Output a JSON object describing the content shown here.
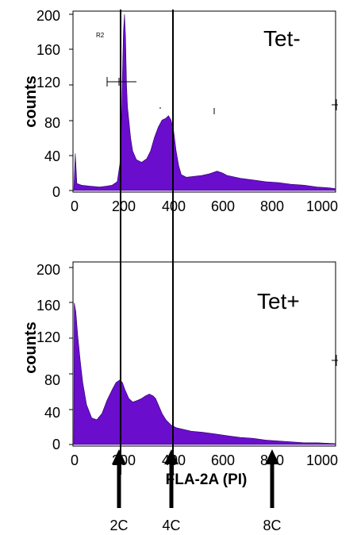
{
  "chart_data": [
    {
      "type": "area",
      "panel_label": "Tet-",
      "ylabel": "counts",
      "xlabel": "",
      "xlim": [
        0,
        1023
      ],
      "ylim": [
        0,
        200
      ],
      "x_ticks": [
        "0",
        "200",
        "400",
        "600",
        "800",
        "1000"
      ],
      "y_ticks": [
        "0",
        "40",
        "80",
        "120",
        "160",
        "200"
      ],
      "gate": {
        "name": "R2",
        "x_range": [
          140,
          265
        ],
        "y": 118
      },
      "series": [
        {
          "color": "#6a0dcc",
          "points": [
            [
              0,
              0
            ],
            [
              6,
              42
            ],
            [
              12,
              8
            ],
            [
              30,
              6
            ],
            [
              60,
              5
            ],
            [
              100,
              4
            ],
            [
              130,
              5
            ],
            [
              150,
              6
            ],
            [
              170,
              10
            ],
            [
              180,
              30
            ],
            [
              186,
              70
            ],
            [
              190,
              130
            ],
            [
              194,
              180
            ],
            [
              198,
              200
            ],
            [
              202,
              175
            ],
            [
              206,
              120
            ],
            [
              210,
              95
            ],
            [
              215,
              80
            ],
            [
              222,
              60
            ],
            [
              230,
              45
            ],
            [
              245,
              35
            ],
            [
              265,
              32
            ],
            [
              285,
              36
            ],
            [
              300,
              45
            ],
            [
              315,
              60
            ],
            [
              330,
              72
            ],
            [
              345,
              80
            ],
            [
              360,
              82
            ],
            [
              370,
              85
            ],
            [
              380,
              80
            ],
            [
              390,
              68
            ],
            [
              400,
              45
            ],
            [
              410,
              28
            ],
            [
              420,
              18
            ],
            [
              440,
              15
            ],
            [
              470,
              16
            ],
            [
              500,
              17
            ],
            [
              530,
              19
            ],
            [
              560,
              22
            ],
            [
              580,
              20
            ],
            [
              600,
              17
            ],
            [
              650,
              14
            ],
            [
              700,
              12
            ],
            [
              750,
              10
            ],
            [
              800,
              9
            ],
            [
              850,
              7
            ],
            [
              900,
              6
            ],
            [
              950,
              4
            ],
            [
              1000,
              3
            ],
            [
              1023,
              2
            ],
            [
              1023,
              0
            ]
          ]
        }
      ]
    },
    {
      "type": "area",
      "panel_label": "Tet+",
      "ylabel": "counts",
      "xlabel": "FLA-2A (PI)",
      "xlim": [
        0,
        1023
      ],
      "ylim": [
        0,
        200
      ],
      "x_ticks": [
        "0",
        "200",
        "400",
        "600",
        "800",
        "1000"
      ],
      "y_ticks": [
        "0",
        "40",
        "80",
        "120",
        "160",
        "200"
      ],
      "series": [
        {
          "color": "#6a0dcc",
          "points": [
            [
              0,
              0
            ],
            [
              2,
              160
            ],
            [
              8,
              150
            ],
            [
              15,
              125
            ],
            [
              25,
              95
            ],
            [
              35,
              70
            ],
            [
              50,
              45
            ],
            [
              70,
              30
            ],
            [
              90,
              28
            ],
            [
              110,
              35
            ],
            [
              130,
              50
            ],
            [
              150,
              62
            ],
            [
              165,
              70
            ],
            [
              180,
              73
            ],
            [
              190,
              70
            ],
            [
              200,
              62
            ],
            [
              215,
              52
            ],
            [
              230,
              48
            ],
            [
              250,
              50
            ],
            [
              265,
              52
            ],
            [
              280,
              55
            ],
            [
              295,
              57
            ],
            [
              310,
              55
            ],
            [
              320,
              52
            ],
            [
              330,
              45
            ],
            [
              345,
              35
            ],
            [
              360,
              28
            ],
            [
              380,
              22
            ],
            [
              400,
              19
            ],
            [
              430,
              17
            ],
            [
              460,
              15
            ],
            [
              500,
              14
            ],
            [
              550,
              12
            ],
            [
              600,
              10
            ],
            [
              650,
              8
            ],
            [
              700,
              7
            ],
            [
              750,
              5
            ],
            [
              800,
              4
            ],
            [
              850,
              3
            ],
            [
              900,
              2
            ],
            [
              950,
              2
            ],
            [
              1023,
              1
            ],
            [
              1023,
              0
            ]
          ]
        }
      ]
    }
  ],
  "markers": [
    {
      "label": "2C",
      "x": 200
    },
    {
      "label": "4C",
      "x": 400
    },
    {
      "label": "8C",
      "x": 800
    }
  ]
}
